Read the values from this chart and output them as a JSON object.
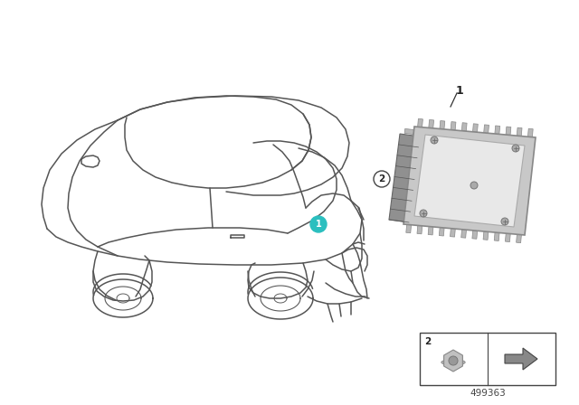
{
  "background_color": "#ffffff",
  "fig_width": 6.4,
  "fig_height": 4.48,
  "part_number": "499363",
  "teal_color": "#2BBFBF",
  "line_color": "#555555",
  "line_color_dark": "#333333",
  "gray_ecu": "#C8C8C8",
  "gray_ecu_inner": "#DCDCDC",
  "gray_ecu_light": "#E8E8E8",
  "tooth_color": "#B8B8B8",
  "box_outline": "#444444"
}
